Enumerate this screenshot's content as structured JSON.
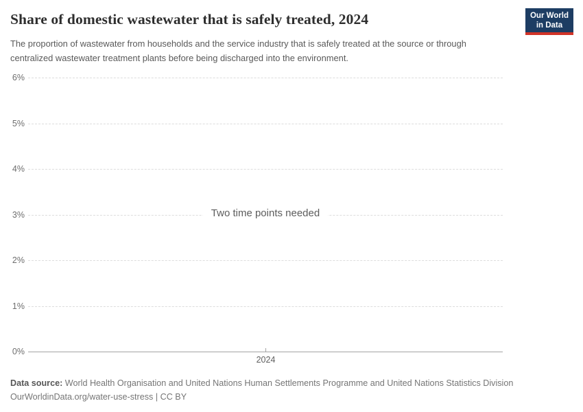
{
  "header": {
    "title": "Share of domestic wastewater that is safely treated, 2024",
    "subtitle": "The proportion of wastewater from households and the service industry that is safely treated at the source or through centralized wastewater treatment plants before being discharged into the environment.",
    "logo": {
      "line1": "Our World",
      "line2": "in Data"
    }
  },
  "chart": {
    "empty_message": "Two time points needed",
    "y_ticks": [
      {
        "label": "6%"
      },
      {
        "label": "5%"
      },
      {
        "label": "4%"
      },
      {
        "label": "3%"
      },
      {
        "label": "2%"
      },
      {
        "label": "1%"
      },
      {
        "label": "0%"
      }
    ],
    "x_ticks": [
      {
        "label": "2024"
      }
    ]
  },
  "footer": {
    "source_prefix": "Data source:",
    "source_text": " World Health Organisation and United Nations Human Settlements Programme and United Nations Statistics Division",
    "link_line": "OurWorldinData.org/water-use-stress | CC BY"
  },
  "colors": {
    "logo_background": "#1d3d63",
    "logo_underline": "#d13327",
    "gridline": "#dcdcdc",
    "axis_line": "#a3a3a3",
    "title_text": "#2e2e2e",
    "subtitle_text": "#595959",
    "tick_text": "#6e6e6e",
    "message_text": "#5c5c5c",
    "footer_text": "#757575"
  },
  "chart_data": {
    "type": "line",
    "title": "Share of domestic wastewater that is safely treated, 2024",
    "subtitle": "The proportion of wastewater from households and the service industry that is safely treated at the source or through centralized wastewater treatment plants before being discharged into the environment.",
    "series": [],
    "x_tick_labels": [
      "2024"
    ],
    "y_tick_labels": [
      "0%",
      "1%",
      "2%",
      "3%",
      "4%",
      "5%",
      "6%"
    ],
    "ylim": [
      0,
      6
    ],
    "y_unit": "%",
    "grid": "horizontal-dashed",
    "legend": "none",
    "empty_state_message": "Two time points needed",
    "note": "Empty chart state: no data points are plotted; a centered message indicates two time points are needed."
  }
}
